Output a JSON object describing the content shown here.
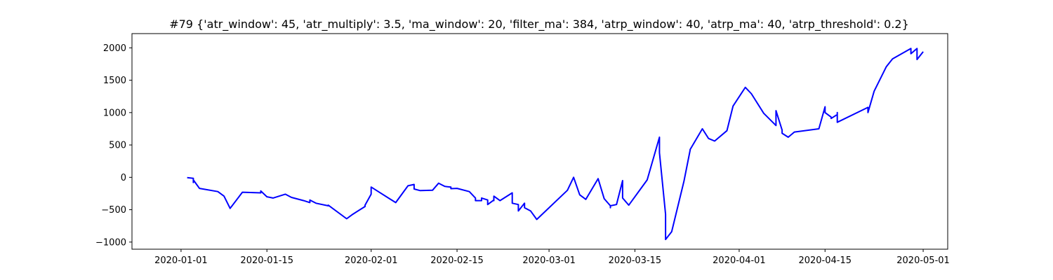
{
  "chart_data": {
    "type": "line",
    "title": "#79 {'atr_window': 45, 'atr_multiply': 3.5, 'ma_window': 20, 'filter_ma': 384, 'atrp_window': 40, 'atrp_ma': 40, 'atrp_threshold': 0.2}",
    "xlabel": "",
    "ylabel": "",
    "xlim": [
      "2019-12-24",
      "2020-05-05"
    ],
    "ylim": [
      -1110,
      2220
    ],
    "x_ticks": [
      "2020-01-01",
      "2020-01-15",
      "2020-02-01",
      "2020-02-15",
      "2020-03-01",
      "2020-03-15",
      "2020-04-01",
      "2020-04-15",
      "2020-05-01"
    ],
    "y_ticks": [
      -1000,
      -500,
      0,
      500,
      1000,
      1500,
      2000
    ],
    "grid": false,
    "series": [
      {
        "color": "#0000ff",
        "x": [
          "2020-01-02",
          "2020-01-02",
          "2020-01-03",
          "2020-01-03",
          "2020-01-03",
          "2020-01-04",
          "2020-01-07",
          "2020-01-08",
          "2020-01-09",
          "2020-01-11",
          "2020-01-14",
          "2020-01-14",
          "2020-01-15",
          "2020-01-16",
          "2020-01-18",
          "2020-01-19",
          "2020-01-21",
          "2020-01-22",
          "2020-01-22",
          "2020-01-23",
          "2020-01-25",
          "2020-01-25",
          "2020-01-28",
          "2020-01-29",
          "2020-01-31",
          "2020-01-31",
          "2020-02-01",
          "2020-02-01",
          "2020-02-02",
          "2020-02-04",
          "2020-02-05",
          "2020-02-07",
          "2020-02-08",
          "2020-02-08",
          "2020-02-09",
          "2020-02-11",
          "2020-02-12",
          "2020-02-13",
          "2020-02-14",
          "2020-02-14",
          "2020-02-15",
          "2020-02-17",
          "2020-02-18",
          "2020-02-18",
          "2020-02-19",
          "2020-02-19",
          "2020-02-20",
          "2020-02-20",
          "2020-02-21",
          "2020-02-21",
          "2020-02-21",
          "2020-02-22",
          "2020-02-24",
          "2020-02-24",
          "2020-02-25",
          "2020-02-25",
          "2020-02-26",
          "2020-02-26",
          "2020-02-27",
          "2020-02-28",
          "2020-03-04",
          "2020-03-05",
          "2020-03-06",
          "2020-03-07",
          "2020-03-09",
          "2020-03-10",
          "2020-03-11",
          "2020-03-11",
          "2020-03-11",
          "2020-03-12",
          "2020-03-13",
          "2020-03-13",
          "2020-03-14",
          "2020-03-17",
          "2020-03-19",
          "2020-03-19",
          "2020-03-20",
          "2020-03-20",
          "2020-03-21",
          "2020-03-23",
          "2020-03-24",
          "2020-03-24",
          "2020-03-26",
          "2020-03-27",
          "2020-03-28",
          "2020-03-30",
          "2020-03-31",
          "2020-04-02",
          "2020-04-03",
          "2020-04-05",
          "2020-04-07",
          "2020-04-07",
          "2020-04-08",
          "2020-04-08",
          "2020-04-09",
          "2020-04-10",
          "2020-04-14",
          "2020-04-15",
          "2020-04-15",
          "2020-04-16",
          "2020-04-16",
          "2020-04-17",
          "2020-04-17",
          "2020-04-17",
          "2020-04-22",
          "2020-04-22",
          "2020-04-23",
          "2020-04-25",
          "2020-04-26",
          "2020-04-29",
          "2020-04-29",
          "2020-04-30",
          "2020-04-30",
          "2020-05-01"
        ],
        "values": [
          -5,
          -5,
          -15,
          -80,
          -40,
          -170,
          -220,
          -290,
          -480,
          -230,
          -240,
          -210,
          -300,
          -320,
          -260,
          -310,
          -360,
          -390,
          -350,
          -400,
          -440,
          -430,
          -640,
          -570,
          -450,
          -430,
          -260,
          -150,
          -210,
          -330,
          -390,
          -130,
          -110,
          -180,
          -205,
          -200,
          -90,
          -140,
          -150,
          -175,
          -170,
          -220,
          -320,
          -360,
          -360,
          -320,
          -350,
          -420,
          -350,
          -360,
          -290,
          -360,
          -240,
          -400,
          -420,
          -520,
          -400,
          -470,
          -520,
          -650,
          -200,
          0,
          -270,
          -340,
          -20,
          -330,
          -440,
          -470,
          -440,
          -420,
          -50,
          -320,
          -430,
          -40,
          620,
          380,
          -570,
          -960,
          -840,
          -60,
          420,
          430,
          750,
          600,
          560,
          720,
          1100,
          1390,
          1290,
          990,
          800,
          1030,
          730,
          680,
          620,
          700,
          750,
          1090,
          1000,
          930,
          910,
          970,
          1000,
          850,
          1080,
          1000,
          1330,
          1710,
          1830,
          1990,
          1910,
          1990,
          1820,
          1940
        ]
      }
    ]
  }
}
